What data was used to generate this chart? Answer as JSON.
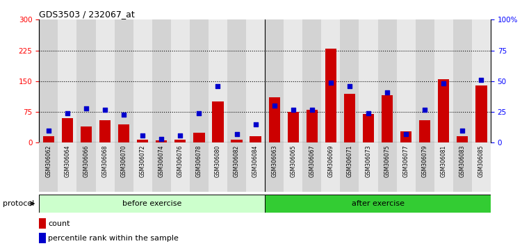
{
  "title": "GDS3503 / 232067_at",
  "categories": [
    "GSM306062",
    "GSM306064",
    "GSM306066",
    "GSM306068",
    "GSM306070",
    "GSM306072",
    "GSM306074",
    "GSM306076",
    "GSM306078",
    "GSM306080",
    "GSM306082",
    "GSM306084",
    "GSM306063",
    "GSM306065",
    "GSM306067",
    "GSM306069",
    "GSM306071",
    "GSM306073",
    "GSM306075",
    "GSM306077",
    "GSM306079",
    "GSM306081",
    "GSM306083",
    "GSM306085"
  ],
  "count_values": [
    15,
    60,
    40,
    55,
    45,
    8,
    5,
    7,
    25,
    100,
    7,
    15,
    110,
    75,
    80,
    230,
    120,
    70,
    115,
    28,
    55,
    155,
    15,
    140
  ],
  "percentile_pct": [
    10,
    24,
    28,
    27,
    23,
    6,
    3,
    6,
    24,
    46,
    7,
    15,
    30,
    27,
    27,
    49,
    46,
    24,
    41,
    7,
    27,
    48,
    10,
    51
  ],
  "before_count": 12,
  "after_count": 12,
  "before_label": "before exercise",
  "after_label": "after exercise",
  "protocol_label": "protocol",
  "legend_count": "count",
  "legend_percentile": "percentile rank within the sample",
  "bar_color": "#CC0000",
  "dot_color": "#0000CC",
  "before_bg": "#CCFFCC",
  "after_bg": "#33CC33",
  "ylim_left": [
    0,
    300
  ],
  "ylim_right": [
    0,
    100
  ],
  "yticks_left": [
    0,
    75,
    150,
    225,
    300
  ],
  "yticks_right": [
    0,
    25,
    50,
    75,
    100
  ],
  "ytick_labels_left": [
    "0",
    "75",
    "150",
    "225",
    "300"
  ],
  "ytick_labels_right": [
    "0",
    "25",
    "50",
    "75",
    "100%"
  ],
  "hlines": [
    75,
    150,
    225
  ],
  "col_bg_even": "#D3D3D3",
  "col_bg_odd": "#E8E8E8"
}
